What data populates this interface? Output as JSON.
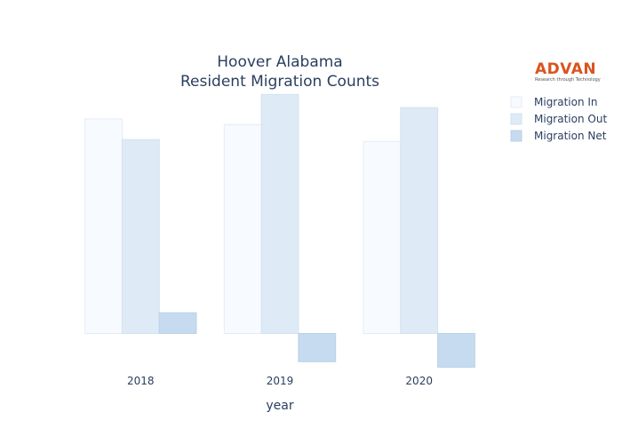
{
  "chart_data": {
    "type": "bar",
    "title": [
      "Hoover Alabama",
      "Resident Migration Counts"
    ],
    "xlabel": "year",
    "ylabel": "",
    "categories": [
      "2018",
      "2019",
      "2020"
    ],
    "series": [
      {
        "name": "Migration In",
        "values": [
          11400,
          11100,
          10200
        ],
        "color": "#f7fbff",
        "stroke": "#e3ecf6"
      },
      {
        "name": "Migration Out",
        "values": [
          10300,
          12700,
          12000
        ],
        "color": "#deebf7",
        "stroke": "#d3e2f1"
      },
      {
        "name": "Migration Net",
        "values": [
          1100,
          -1500,
          -1800
        ],
        "color": "#c6dbef",
        "stroke": "#b9d1ea"
      }
    ],
    "ylim": [
      -2100,
      13000
    ],
    "show_y_ticks": false,
    "grid": false,
    "legend": "top-right"
  },
  "logo": {
    "word": "ADVAN",
    "tagline": "Research through Technology"
  }
}
